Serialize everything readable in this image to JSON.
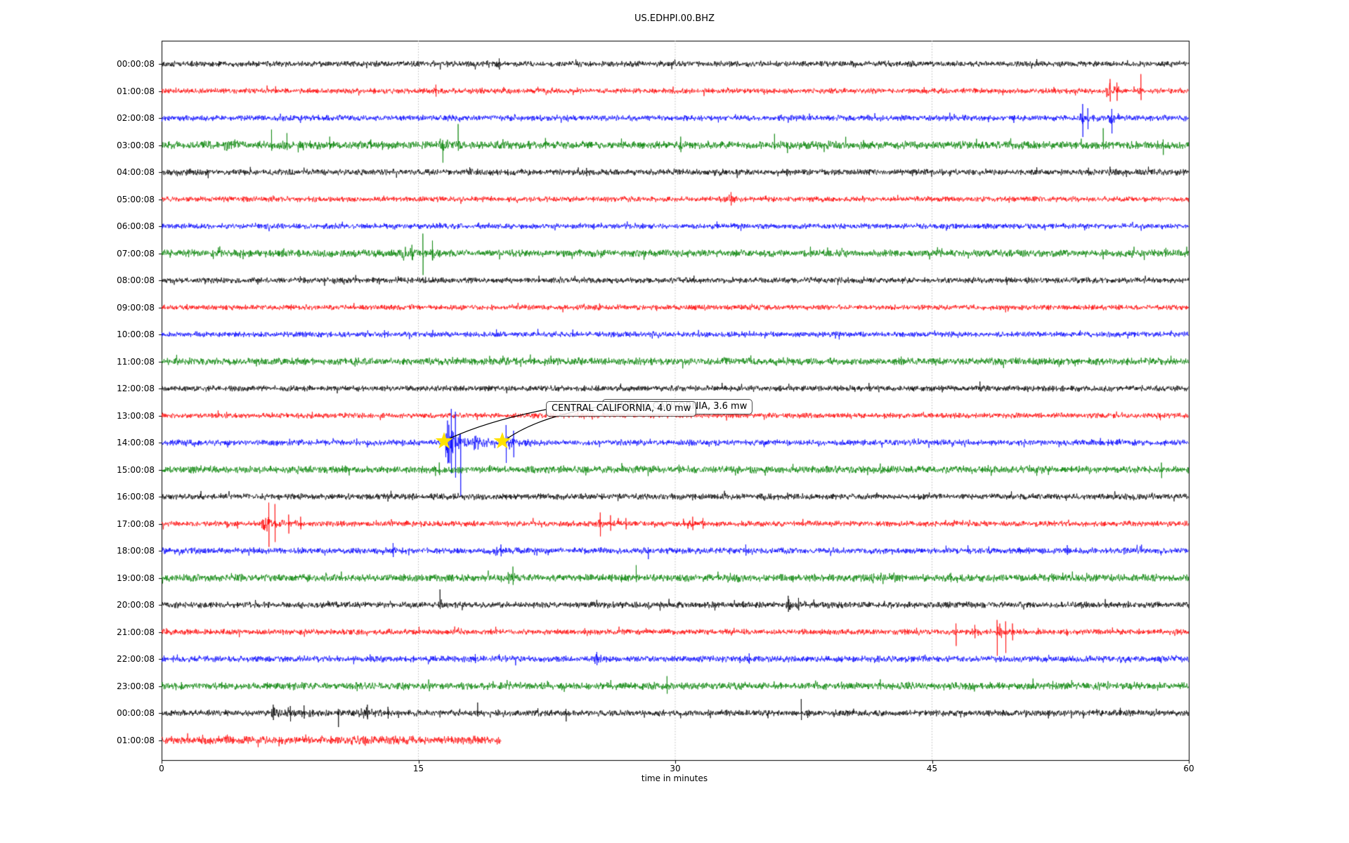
{
  "title": "US.EDHPI.00.BHZ",
  "axes": {
    "xlabel": "time in minutes",
    "x_ticks": [
      "0",
      "15",
      "30",
      "45",
      "60"
    ]
  },
  "annotations": [
    {
      "text": "CENTRAL CALIFORNIA, 4.0 mw"
    },
    {
      "text": "CENTRAL CALIFORNIA, 3.6 mw"
    }
  ],
  "colors": {
    "black": "#000000",
    "red": "#ff0000",
    "blue": "#0000ff",
    "green": "#008000",
    "grid": "#b3b3b3",
    "axis": "#000000",
    "star": "#ffe100"
  },
  "chart_data": {
    "type": "line",
    "title": "US.EDHPI.00.BHZ",
    "xlabel": "time in minutes",
    "xlim": [
      0,
      60
    ],
    "x_ticks": [
      0,
      15,
      30,
      45,
      60
    ],
    "grid_minutes": [
      15,
      30,
      45
    ],
    "grid_style": "dotted",
    "legend": "none",
    "description": "24+ hour helicorder: one trace per hour, colors cycle black/red/blue/green; amplitudes in pixels, positions in minutes",
    "event_markers": [
      {
        "row": 14,
        "minute": 16.5,
        "symbol": "star"
      },
      {
        "row": 14,
        "minute": 19.9,
        "symbol": "star"
      }
    ],
    "rows": [
      {
        "label": "00:00:08",
        "color": "black",
        "noise": 3.1,
        "events": [
          {
            "m": 19.55,
            "a": 5,
            "t": 0.2
          }
        ],
        "spikes": [
          {
            "m": 19.7,
            "u": 8,
            "d": 8
          }
        ]
      },
      {
        "label": "01:00:08",
        "color": "red",
        "noise": 2.9,
        "events": [
          {
            "m": 15.9,
            "a": 7,
            "t": 0.15
          },
          {
            "m": 55.1,
            "a": 13,
            "t": 0.45
          },
          {
            "m": 57.0,
            "a": 9,
            "t": 0.25
          }
        ],
        "spikes": [
          {
            "m": 16.0,
            "u": 9,
            "d": 8
          },
          {
            "m": 55.4,
            "u": 17,
            "d": 15
          },
          {
            "m": 55.8,
            "u": 12,
            "d": 14
          },
          {
            "m": 57.2,
            "u": 24,
            "d": 13
          }
        ]
      },
      {
        "label": "02:00:08",
        "color": "blue",
        "noise": 3.1,
        "events": [
          {
            "m": 53.6,
            "a": 13,
            "t": 0.4
          },
          {
            "m": 55.3,
            "a": 11,
            "t": 0.35
          }
        ],
        "spikes": [
          {
            "m": 53.8,
            "u": 20,
            "d": 27
          },
          {
            "m": 54.1,
            "u": 14,
            "d": 16
          },
          {
            "m": 55.5,
            "u": 13,
            "d": 22
          }
        ]
      },
      {
        "label": "03:00:08",
        "color": "green",
        "noise": 4.3,
        "events": [
          {
            "m": 3.6,
            "a": 9,
            "t": 0.6
          },
          {
            "m": 16.1,
            "a": 8,
            "t": 0.5
          },
          {
            "m": 58.1,
            "a": 8,
            "t": 0.3
          }
        ],
        "spikes": [
          {
            "m": 6.4,
            "u": 22,
            "d": 8
          },
          {
            "m": 7.3,
            "u": 17,
            "d": 7
          },
          {
            "m": 9.8,
            "u": 12,
            "d": 6
          },
          {
            "m": 12.2,
            "u": 8,
            "d": 5
          },
          {
            "m": 16.4,
            "u": 7,
            "d": 25
          },
          {
            "m": 17.3,
            "u": 30,
            "d": 8
          },
          {
            "m": 22.4,
            "u": 10,
            "d": 5
          },
          {
            "m": 30.3,
            "u": 12,
            "d": 10
          },
          {
            "m": 35.8,
            "u": 16,
            "d": 6
          },
          {
            "m": 41.0,
            "u": 7,
            "d": 5
          },
          {
            "m": 55.0,
            "u": 24,
            "d": 6
          },
          {
            "m": 58.5,
            "u": 8,
            "d": 14
          }
        ]
      },
      {
        "label": "04:00:08",
        "color": "black",
        "noise": 3.3,
        "events": [],
        "spikes": [
          {
            "m": 24.8,
            "u": 6,
            "d": 6
          }
        ]
      },
      {
        "label": "05:00:08",
        "color": "red",
        "noise": 2.9,
        "events": [
          {
            "m": 33.1,
            "a": 7,
            "t": 0.3
          }
        ],
        "spikes": [
          {
            "m": 33.25,
            "u": 10,
            "d": 9
          }
        ]
      },
      {
        "label": "06:00:08",
        "color": "blue",
        "noise": 3.0,
        "events": [],
        "spikes": []
      },
      {
        "label": "07:00:08",
        "color": "green",
        "noise": 4.0,
        "events": [
          {
            "m": 13.9,
            "a": 9,
            "t": 0.7
          },
          {
            "m": 15.6,
            "a": 7,
            "t": 0.3
          }
        ],
        "spikes": [
          {
            "m": 14.6,
            "u": 12,
            "d": 9
          },
          {
            "m": 15.25,
            "u": 28,
            "d": 31
          },
          {
            "m": 15.8,
            "u": 18,
            "d": 10
          }
        ]
      },
      {
        "label": "08:00:08",
        "color": "black",
        "noise": 3.1,
        "events": [],
        "spikes": []
      },
      {
        "label": "09:00:08",
        "color": "red",
        "noise": 2.9,
        "events": [],
        "spikes": []
      },
      {
        "label": "10:00:08",
        "color": "blue",
        "noise": 3.0,
        "events": [],
        "spikes": [
          {
            "m": 13.0,
            "u": 6,
            "d": 5
          }
        ]
      },
      {
        "label": "11:00:08",
        "color": "green",
        "noise": 3.9,
        "events": [],
        "spikes": [
          {
            "m": 43.2,
            "u": 7,
            "d": 5
          }
        ]
      },
      {
        "label": "12:00:08",
        "color": "black",
        "noise": 3.1,
        "events": [],
        "spikes": [
          {
            "m": 47.8,
            "u": 10,
            "d": 4
          }
        ]
      },
      {
        "label": "13:00:08",
        "color": "red",
        "noise": 2.9,
        "events": [],
        "spikes": []
      },
      {
        "label": "14:00:08",
        "color": "blue",
        "noise": 3.2,
        "events": [
          {
            "m": 16.55,
            "a": 40,
            "t": 0.55
          },
          {
            "m": 18.1,
            "a": 9,
            "t": 1.2
          },
          {
            "m": 19.95,
            "a": 19,
            "t": 0.5
          },
          {
            "m": 21.2,
            "a": 4,
            "t": 1.6
          }
        ],
        "spikes": [
          {
            "m": 16.9,
            "u": 48,
            "d": 44
          },
          {
            "m": 17.15,
            "u": 44,
            "d": 50
          },
          {
            "m": 17.45,
            "u": 12,
            "d": 77
          },
          {
            "m": 20.1,
            "u": 25,
            "d": 29
          },
          {
            "m": 20.55,
            "u": 17,
            "d": 21
          }
        ]
      },
      {
        "label": "15:00:08",
        "color": "green",
        "noise": 3.9,
        "events": [],
        "spikes": [
          {
            "m": 30.2,
            "u": 7,
            "d": 5
          },
          {
            "m": 58.4,
            "u": 10,
            "d": 12
          }
        ]
      },
      {
        "label": "16:00:08",
        "color": "black",
        "noise": 3.3,
        "events": [],
        "spikes": []
      },
      {
        "label": "17:00:08",
        "color": "red",
        "noise": 3.0,
        "events": [
          {
            "m": 5.8,
            "a": 11,
            "t": 0.9
          },
          {
            "m": 25.4,
            "a": 10,
            "t": 0.45
          },
          {
            "m": 30.7,
            "a": 8,
            "t": 0.4
          }
        ],
        "spikes": [
          {
            "m": 6.25,
            "u": 30,
            "d": 33
          },
          {
            "m": 6.6,
            "u": 28,
            "d": 26
          },
          {
            "m": 7.4,
            "u": 13,
            "d": 14
          },
          {
            "m": 8.1,
            "u": 10,
            "d": 8
          },
          {
            "m": 25.6,
            "u": 16,
            "d": 18
          },
          {
            "m": 26.2,
            "u": 12,
            "d": 10
          },
          {
            "m": 27.1,
            "u": 8,
            "d": 8
          },
          {
            "m": 31.0,
            "u": 10,
            "d": 9
          },
          {
            "m": 31.6,
            "u": 8,
            "d": 7
          }
        ]
      },
      {
        "label": "18:00:08",
        "color": "blue",
        "noise": 3.3,
        "events": [
          {
            "m": 13.3,
            "a": 7,
            "t": 0.3
          },
          {
            "m": 19.4,
            "a": 7,
            "t": 0.7
          },
          {
            "m": 29.8,
            "a": 4,
            "t": 0.3
          },
          {
            "m": 33.9,
            "a": 6,
            "t": 0.3
          },
          {
            "m": 56.0,
            "a": 5,
            "t": 0.3
          }
        ],
        "spikes": [
          {
            "m": 13.5,
            "u": 11,
            "d": 9
          },
          {
            "m": 19.8,
            "u": 9,
            "d": 8
          },
          {
            "m": 28.4,
            "u": 5,
            "d": 12
          },
          {
            "m": 34.1,
            "u": 9,
            "d": 7
          },
          {
            "m": 52.9,
            "u": 8,
            "d": 6
          }
        ]
      },
      {
        "label": "19:00:08",
        "color": "green",
        "noise": 4.0,
        "events": [
          {
            "m": 14.9,
            "a": 5,
            "t": 0.3
          },
          {
            "m": 20.2,
            "a": 9,
            "t": 0.5
          },
          {
            "m": 33.0,
            "a": 5,
            "t": 0.6
          },
          {
            "m": 45.9,
            "a": 5,
            "t": 0.3
          }
        ],
        "spikes": [
          {
            "m": 20.5,
            "u": 16,
            "d": 10
          },
          {
            "m": 27.7,
            "u": 18,
            "d": 6
          },
          {
            "m": 46.1,
            "u": 7,
            "d": 6
          }
        ]
      },
      {
        "label": "20:00:08",
        "color": "black",
        "noise": 3.3,
        "events": [
          {
            "m": 36.4,
            "a": 9,
            "t": 0.7
          }
        ],
        "spikes": [
          {
            "m": 16.25,
            "u": 22,
            "d": 6
          },
          {
            "m": 36.6,
            "u": 13,
            "d": 10
          },
          {
            "m": 37.2,
            "u": 10,
            "d": 8
          }
        ]
      },
      {
        "label": "21:00:08",
        "color": "red",
        "noise": 3.0,
        "events": [
          {
            "m": 47.3,
            "a": 7,
            "t": 0.4
          },
          {
            "m": 48.7,
            "a": 11,
            "t": 0.6
          }
        ],
        "spikes": [
          {
            "m": 46.4,
            "u": 12,
            "d": 20
          },
          {
            "m": 47.5,
            "u": 10,
            "d": 9
          },
          {
            "m": 48.8,
            "u": 17,
            "d": 34
          },
          {
            "m": 49.3,
            "u": 15,
            "d": 30
          },
          {
            "m": 49.7,
            "u": 12,
            "d": 12
          }
        ]
      },
      {
        "label": "22:00:08",
        "color": "blue",
        "noise": 3.4,
        "events": [
          {
            "m": 19.9,
            "a": 5,
            "t": 0.3
          },
          {
            "m": 25.2,
            "a": 7,
            "t": 0.4
          },
          {
            "m": 34.1,
            "a": 6,
            "t": 0.4
          },
          {
            "m": 44.2,
            "a": 4,
            "t": 0.3
          },
          {
            "m": 55.8,
            "a": 5,
            "t": 0.3
          }
        ],
        "spikes": [
          {
            "m": 18.3,
            "u": 7,
            "d": 6
          },
          {
            "m": 25.4,
            "u": 10,
            "d": 9
          },
          {
            "m": 34.3,
            "u": 8,
            "d": 7
          }
        ]
      },
      {
        "label": "23:00:08",
        "color": "green",
        "noise": 3.9,
        "events": [],
        "spikes": [
          {
            "m": 29.5,
            "u": 14,
            "d": 11
          }
        ]
      },
      {
        "label": "00:00:08",
        "color": "black",
        "noise": 3.3,
        "events": [
          {
            "m": 6.1,
            "a": 7,
            "t": 1.6
          },
          {
            "m": 11.5,
            "a": 8,
            "t": 0.9
          },
          {
            "m": 14.4,
            "a": 5,
            "t": 0.5
          }
        ],
        "spikes": [
          {
            "m": 6.5,
            "u": 12,
            "d": 10
          },
          {
            "m": 7.5,
            "u": 10,
            "d": 12
          },
          {
            "m": 8.3,
            "u": 11,
            "d": 8
          },
          {
            "m": 10.3,
            "u": 6,
            "d": 20
          },
          {
            "m": 12.0,
            "u": 12,
            "d": 9
          },
          {
            "m": 13.2,
            "u": 9,
            "d": 8
          },
          {
            "m": 18.45,
            "u": 15,
            "d": 5
          },
          {
            "m": 23.6,
            "u": 6,
            "d": 12
          },
          {
            "m": 37.35,
            "u": 20,
            "d": 10
          }
        ]
      },
      {
        "label": "01:00:08",
        "color": "red",
        "noise": 4.4,
        "end": 19.85,
        "events": [],
        "spikes": []
      }
    ]
  }
}
